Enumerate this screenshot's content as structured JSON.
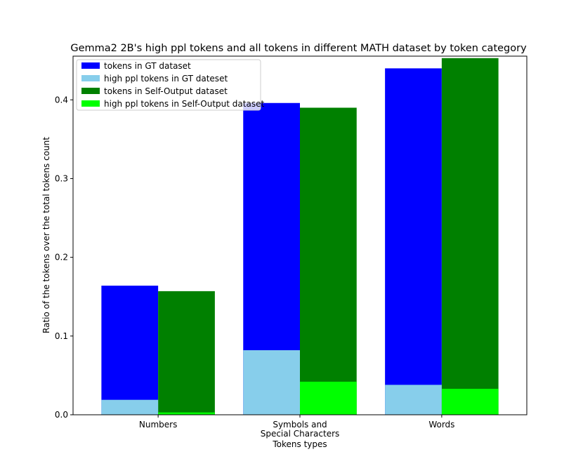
{
  "chart_data": {
    "type": "bar",
    "title": "Gemma2 2B's high ppl tokens and all tokens in different MATH dataset by token category",
    "xlabel": "Tokens types",
    "ylabel": "Ratio of the tokens over the total tokens count",
    "categories": [
      [
        "Numbers"
      ],
      [
        "Symbols and",
        "Special Characters"
      ],
      [
        "Words"
      ]
    ],
    "ylim": [
      0,
      0.4555
    ],
    "yticks": [
      "0.0",
      "0.1",
      "0.2",
      "0.3",
      "0.4"
    ],
    "ytick_values": [
      0.0,
      0.1,
      0.2,
      0.3,
      0.4
    ],
    "legend_position": "upper-left",
    "series": [
      {
        "name": "tokens in GT dataset",
        "color": "#0000ff",
        "group": 0,
        "values": [
          0.164,
          0.396,
          0.44
        ]
      },
      {
        "name": "high ppl tokens in GT dateset",
        "color": "#87ceeb",
        "group": 0,
        "values": [
          0.019,
          0.082,
          0.038
        ]
      },
      {
        "name": "tokens in Self-Output dataset",
        "color": "#008000",
        "group": 1,
        "values": [
          0.157,
          0.39,
          0.453
        ]
      },
      {
        "name": "high ppl tokens in Self-Output dataset",
        "color": "#00ff00",
        "group": 1,
        "values": [
          0.003,
          0.042,
          0.033
        ]
      }
    ]
  }
}
